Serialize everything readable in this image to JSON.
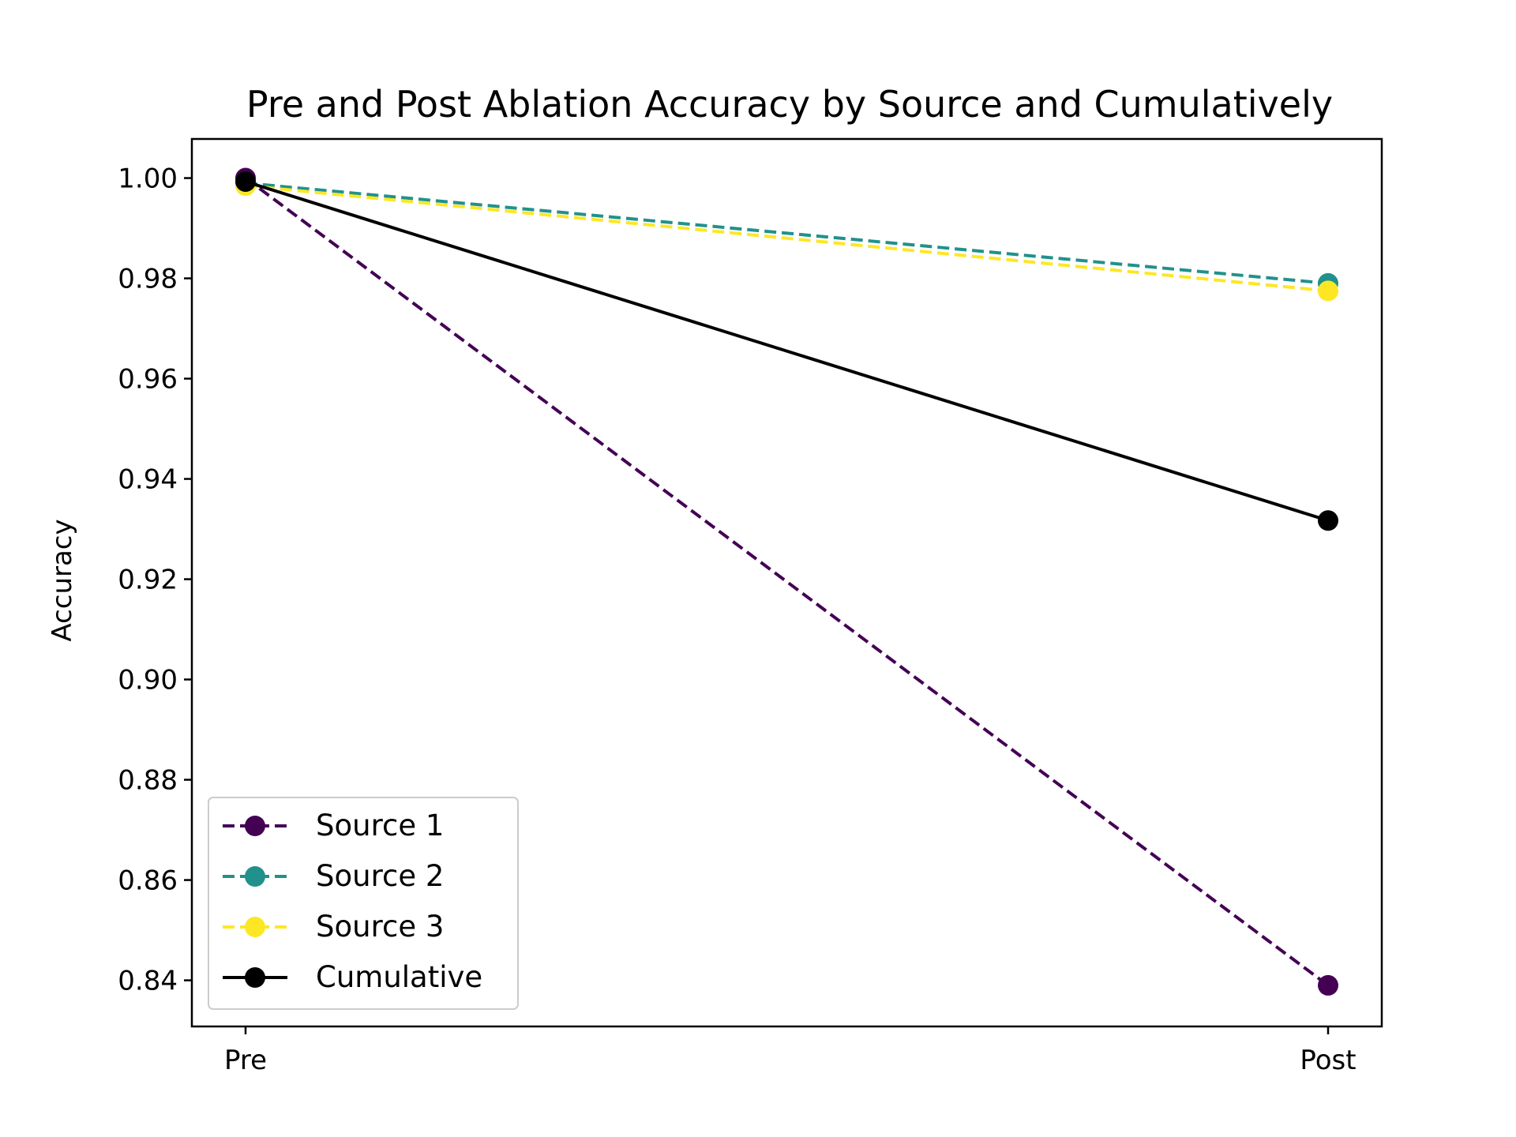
{
  "chart_data": {
    "type": "line",
    "title": "Pre and Post Ablation Accuracy by Source and Cumulatively",
    "xlabel": "",
    "ylabel": "Accuracy",
    "categories": [
      "Pre",
      "Post"
    ],
    "ylim": [
      0.8308,
      1.0078
    ],
    "yticks": [
      "0.84",
      "0.86",
      "0.88",
      "0.90",
      "0.92",
      "0.94",
      "0.96",
      "0.98",
      "1.00"
    ],
    "grid": false,
    "legend_position": "lower-left",
    "series": [
      {
        "name": "Source 1",
        "values": [
          1.0,
          0.839
        ],
        "color": "#440154",
        "line_style": "dashed"
      },
      {
        "name": "Source 2",
        "values": [
          0.999,
          0.979
        ],
        "color": "#21918c",
        "line_style": "dashed"
      },
      {
        "name": "Source 3",
        "values": [
          0.9985,
          0.9775
        ],
        "color": "#fde725",
        "line_style": "dashed"
      },
      {
        "name": "Cumulative",
        "values": [
          0.9993,
          0.9317
        ],
        "color": "#000000",
        "line_style": "solid"
      }
    ]
  }
}
